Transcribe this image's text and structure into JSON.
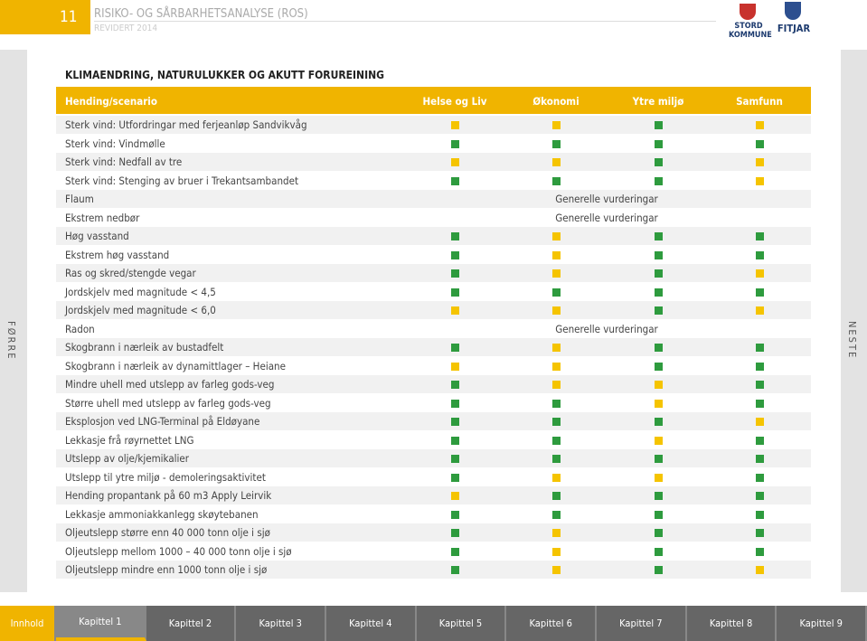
{
  "header": {
    "page_number": "11",
    "title": "RISIKO- OG SÅRBARHETSANALYSE (ROS)",
    "subtitle": "REVIDERT 2014",
    "logos": [
      "STORD KOMMUNE",
      "FITJAR"
    ]
  },
  "side": {
    "prev": "FØRRE",
    "next": "NESTE"
  },
  "section_title": "KLIMAENDRING, NATURULUKKER OG AKUTT FORUREINING",
  "table": {
    "header": [
      "Hending/scenario",
      "Helse og Liv",
      "Økonomi",
      "Ytre miljø",
      "Samfunn"
    ],
    "rows": [
      {
        "label": "Sterk vind: Utfordringar med ferjeanløp Sandvikvåg",
        "cells": [
          "#f5c400",
          "#f5c400",
          "#2e9b3e",
          "#f5c400"
        ]
      },
      {
        "label": "Sterk vind: Vindmølle",
        "cells": [
          "#2e9b3e",
          "#2e9b3e",
          "#2e9b3e",
          "#2e9b3e"
        ]
      },
      {
        "label": "Sterk vind: Nedfall av tre",
        "cells": [
          "#f5c400",
          "#f5c400",
          "#2e9b3e",
          "#f5c400"
        ]
      },
      {
        "label": "Sterk vind: Stenging av bruer i Trekantsambandet",
        "cells": [
          "#2e9b3e",
          "#2e9b3e",
          "#2e9b3e",
          "#f5c400"
        ]
      },
      {
        "label": "Flaum",
        "note": "Generelle vurderingar"
      },
      {
        "label": "Ekstrem nedbør",
        "note": "Generelle vurderingar"
      },
      {
        "label": "Høg vasstand",
        "cells": [
          "#2e9b3e",
          "#f5c400",
          "#2e9b3e",
          "#2e9b3e"
        ]
      },
      {
        "label": "Ekstrem høg vasstand",
        "cells": [
          "#2e9b3e",
          "#f5c400",
          "#2e9b3e",
          "#2e9b3e"
        ]
      },
      {
        "label": "Ras og skred/stengde vegar",
        "cells": [
          "#2e9b3e",
          "#f5c400",
          "#2e9b3e",
          "#f5c400"
        ]
      },
      {
        "label": "Jordskjelv med magnitude < 4,5",
        "cells": [
          "#2e9b3e",
          "#2e9b3e",
          "#2e9b3e",
          "#2e9b3e"
        ]
      },
      {
        "label": "Jordskjelv med magnitude < 6,0",
        "cells": [
          "#f5c400",
          "#f5c400",
          "#2e9b3e",
          "#f5c400"
        ]
      },
      {
        "label": "Radon",
        "note": "Generelle vurderingar"
      },
      {
        "label": "Skogbrann i nærleik av bustadfelt",
        "cells": [
          "#2e9b3e",
          "#f5c400",
          "#2e9b3e",
          "#2e9b3e"
        ]
      },
      {
        "label": "Skogbrann i nærleik av dynamittlager – Heiane",
        "cells": [
          "#f5c400",
          "#f5c400",
          "#2e9b3e",
          "#2e9b3e"
        ]
      },
      {
        "label": "Mindre uhell med utslepp av farleg gods-veg",
        "cells": [
          "#2e9b3e",
          "#f5c400",
          "#f5c400",
          "#2e9b3e"
        ]
      },
      {
        "label": "Større uhell med utslepp av farleg gods-veg",
        "cells": [
          "#2e9b3e",
          "#2e9b3e",
          "#f5c400",
          "#2e9b3e"
        ]
      },
      {
        "label": "Eksplosjon ved LNG-Terminal på Eldøyane",
        "cells": [
          "#2e9b3e",
          "#2e9b3e",
          "#2e9b3e",
          "#f5c400"
        ]
      },
      {
        "label": "Lekkasje frå røyrnettet LNG",
        "cells": [
          "#2e9b3e",
          "#2e9b3e",
          "#f5c400",
          "#2e9b3e"
        ]
      },
      {
        "label": "Utslepp av olje/kjemikalier",
        "cells": [
          "#2e9b3e",
          "#2e9b3e",
          "#2e9b3e",
          "#2e9b3e"
        ]
      },
      {
        "label": "Utslepp til ytre miljø - demoleringsaktivitet",
        "cells": [
          "#2e9b3e",
          "#f5c400",
          "#f5c400",
          "#2e9b3e"
        ]
      },
      {
        "label": "Hending propantank på 60 m3 Apply Leirvik",
        "cells": [
          "#f5c400",
          "#2e9b3e",
          "#2e9b3e",
          "#2e9b3e"
        ]
      },
      {
        "label": "Lekkasje ammoniakkanlegg skøytebanen",
        "cells": [
          "#2e9b3e",
          "#2e9b3e",
          "#2e9b3e",
          "#2e9b3e"
        ]
      },
      {
        "label": "Oljeutslepp større enn 40 000 tonn olje i sjø",
        "cells": [
          "#2e9b3e",
          "#f5c400",
          "#2e9b3e",
          "#2e9b3e"
        ]
      },
      {
        "label": "Oljeutslepp mellom 1000 – 40 000 tonn olje i sjø",
        "cells": [
          "#2e9b3e",
          "#f5c400",
          "#2e9b3e",
          "#2e9b3e"
        ]
      },
      {
        "label": "Oljeutslepp mindre enn 1000 tonn olje i sjø",
        "cells": [
          "#2e9b3e",
          "#f5c400",
          "#2e9b3e",
          "#f5c400"
        ]
      }
    ]
  },
  "nav": [
    "Innhold",
    "Kapittel 1",
    "Kapittel 2",
    "Kapittel 3",
    "Kapittel 4",
    "Kapittel 5",
    "Kapittel 6",
    "Kapittel 7",
    "Kapittel 8",
    "Kapittel 9"
  ]
}
